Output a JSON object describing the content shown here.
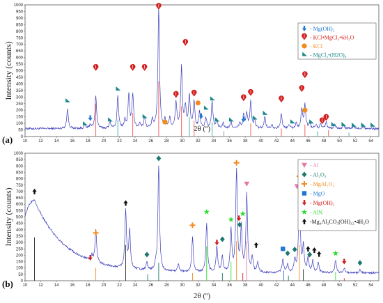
{
  "chart_data": [
    {
      "type": "line",
      "panel_label": "(a)",
      "xlabel": "2θ (º)",
      "ylabel": "Intensity (counts)",
      "xlim": [
        10,
        55
      ],
      "ylim": [
        0,
        1000
      ],
      "x_ticks": [
        10,
        12,
        14,
        16,
        18,
        20,
        22,
        24,
        26,
        28,
        30,
        32,
        34,
        36,
        38,
        40,
        42,
        44,
        46,
        48,
        50,
        52,
        54
      ],
      "y_ticks": [
        0,
        50,
        100,
        150,
        200,
        250,
        300,
        350,
        400,
        450,
        500,
        550,
        600,
        650,
        700,
        750,
        800,
        850,
        900,
        950,
        1000
      ],
      "line_color": "#3d3dbb",
      "baseline": 60,
      "peaks": [
        {
          "x": 15.4,
          "h": 150
        },
        {
          "x": 17.6,
          "h": 25
        },
        {
          "x": 18.3,
          "h": 30
        },
        {
          "x": 19.0,
          "h": 250
        },
        {
          "x": 20.8,
          "h": 50
        },
        {
          "x": 21.8,
          "h": 240
        },
        {
          "x": 22.7,
          "h": 60
        },
        {
          "x": 23.2,
          "h": 250
        },
        {
          "x": 23.7,
          "h": 260
        },
        {
          "x": 24.6,
          "h": 40
        },
        {
          "x": 25.2,
          "h": 80
        },
        {
          "x": 26.2,
          "h": 60
        },
        {
          "x": 27.0,
          "h": 900
        },
        {
          "x": 27.8,
          "h": 60
        },
        {
          "x": 28.4,
          "h": 80
        },
        {
          "x": 29.2,
          "h": 200
        },
        {
          "x": 29.9,
          "h": 460
        },
        {
          "x": 30.4,
          "h": 150
        },
        {
          "x": 30.9,
          "h": 250
        },
        {
          "x": 31.5,
          "h": 200
        },
        {
          "x": 32.2,
          "h": 120
        },
        {
          "x": 33.0,
          "h": 80
        },
        {
          "x": 33.8,
          "h": 200
        },
        {
          "x": 34.4,
          "h": 60
        },
        {
          "x": 35.2,
          "h": 40
        },
        {
          "x": 36.2,
          "h": 50
        },
        {
          "x": 37.3,
          "h": 40
        },
        {
          "x": 37.8,
          "h": 100
        },
        {
          "x": 38.2,
          "h": 110
        },
        {
          "x": 38.7,
          "h": 200
        },
        {
          "x": 39.2,
          "h": 60
        },
        {
          "x": 40.5,
          "h": 90
        },
        {
          "x": 41.4,
          "h": 30
        },
        {
          "x": 42.6,
          "h": 110
        },
        {
          "x": 43.6,
          "h": 30
        },
        {
          "x": 44.5,
          "h": 40
        },
        {
          "x": 45.2,
          "h": 140
        },
        {
          "x": 45.6,
          "h": 180
        },
        {
          "x": 46.2,
          "h": 40
        },
        {
          "x": 47.0,
          "h": 30
        },
        {
          "x": 47.6,
          "h": 30
        },
        {
          "x": 48.3,
          "h": 50
        },
        {
          "x": 49.4,
          "h": 30
        },
        {
          "x": 50.5,
          "h": 25
        },
        {
          "x": 51.8,
          "h": 20
        },
        {
          "x": 53.0,
          "h": 20
        }
      ],
      "legend": [
        {
          "label": "- Mg(OH)₂",
          "color": "#1f78d1",
          "symbol": "arrow-down"
        },
        {
          "label": "- KCl•MgCl₂•6H₂O",
          "color": "#d21f1f",
          "symbol": "drop"
        },
        {
          "label": "- KCl",
          "color": "#f28a1d",
          "symbol": "circle"
        },
        {
          "label": "- MgCl₂•(H2O)₆",
          "color": "#1a8a8a",
          "symbol": "flag"
        }
      ],
      "markers": [
        {
          "x": 15.4,
          "y": 270,
          "symbol": "flag",
          "color": "#1a8a8a"
        },
        {
          "x": 18.3,
          "y": 140,
          "symbol": "arrow-down",
          "color": "#1f78d1"
        },
        {
          "x": 17.6,
          "y": 95,
          "symbol": "flag",
          "color": "#1a8a8a"
        },
        {
          "x": 19.0,
          "y": 520,
          "symbol": "drop",
          "color": "#d21f1f"
        },
        {
          "x": 20.8,
          "y": 125,
          "symbol": "flag",
          "color": "#1a8a8a"
        },
        {
          "x": 21.8,
          "y": 360,
          "symbol": "flag",
          "color": "#1a8a8a"
        },
        {
          "x": 23.7,
          "y": 520,
          "symbol": "drop",
          "color": "#d21f1f"
        },
        {
          "x": 25.2,
          "y": 520,
          "symbol": "drop",
          "color": "#d21f1f"
        },
        {
          "x": 25.2,
          "y": 150,
          "symbol": "flag",
          "color": "#1a8a8a"
        },
        {
          "x": 27.0,
          "y": 985,
          "symbol": "drop",
          "color": "#d21f1f"
        },
        {
          "x": 27.8,
          "y": 110,
          "symbol": "circle",
          "color": "#f28a1d"
        },
        {
          "x": 29.2,
          "y": 315,
          "symbol": "drop",
          "color": "#d21f1f"
        },
        {
          "x": 30.4,
          "y": 710,
          "symbol": "drop",
          "color": "#d21f1f"
        },
        {
          "x": 31.5,
          "y": 325,
          "symbol": "drop",
          "color": "#d21f1f"
        },
        {
          "x": 32.0,
          "y": 255,
          "symbol": "circle",
          "color": "#f28a1d"
        },
        {
          "x": 32.4,
          "y": 155,
          "symbol": "arrow-down",
          "color": "#1f78d1"
        },
        {
          "x": 33.0,
          "y": 215,
          "symbol": "flag",
          "color": "#1a8a8a"
        },
        {
          "x": 33.8,
          "y": 285,
          "symbol": "flag",
          "color": "#1a8a8a"
        },
        {
          "x": 34.4,
          "y": 125,
          "symbol": "flag",
          "color": "#1a8a8a"
        },
        {
          "x": 36.2,
          "y": 125,
          "symbol": "flag",
          "color": "#1a8a8a"
        },
        {
          "x": 37.8,
          "y": 290,
          "symbol": "drop",
          "color": "#d21f1f"
        },
        {
          "x": 37.8,
          "y": 130,
          "symbol": "arrow-down",
          "color": "#1f78d1"
        },
        {
          "x": 38.7,
          "y": 330,
          "symbol": "drop",
          "color": "#d21f1f"
        },
        {
          "x": 39.2,
          "y": 140,
          "symbol": "flag",
          "color": "#1a8a8a"
        },
        {
          "x": 40.5,
          "y": 175,
          "symbol": "flag",
          "color": "#1a8a8a"
        },
        {
          "x": 42.6,
          "y": 280,
          "symbol": "drop",
          "color": "#d21f1f"
        },
        {
          "x": 44.0,
          "y": 110,
          "symbol": "flag",
          "color": "#1a8a8a"
        },
        {
          "x": 45.2,
          "y": 360,
          "symbol": "drop",
          "color": "#d21f1f"
        },
        {
          "x": 45.6,
          "y": 465,
          "symbol": "drop",
          "color": "#d21f1f"
        },
        {
          "x": 45.6,
          "y": 200,
          "symbol": "circle",
          "color": "#f28a1d"
        },
        {
          "x": 46.4,
          "y": 110,
          "symbol": "flag",
          "color": "#1a8a8a"
        },
        {
          "x": 47.8,
          "y": 115,
          "symbol": "drop",
          "color": "#d21f1f"
        },
        {
          "x": 48.3,
          "y": 140,
          "symbol": "drop",
          "color": "#d21f1f"
        },
        {
          "x": 49.2,
          "y": 90,
          "symbol": "flag",
          "color": "#1a8a8a"
        },
        {
          "x": 50.5,
          "y": 90,
          "symbol": "flag",
          "color": "#1a8a8a"
        },
        {
          "x": 51.8,
          "y": 85,
          "symbol": "flag",
          "color": "#1a8a8a"
        },
        {
          "x": 53.0,
          "y": 85,
          "symbol": "flag",
          "color": "#1a8a8a"
        },
        {
          "x": 54.2,
          "y": 85,
          "symbol": "flag",
          "color": "#1a8a8a"
        }
      ],
      "ref_lines": [
        {
          "x": 19.0,
          "h": 250,
          "color": "#e55"
        },
        {
          "x": 21.8,
          "h": 130,
          "color": "#3aa"
        },
        {
          "x": 23.7,
          "h": 180,
          "color": "#e55"
        },
        {
          "x": 27.0,
          "h": 420,
          "color": "#e55"
        },
        {
          "x": 29.9,
          "h": 230,
          "color": "#e55"
        },
        {
          "x": 30.9,
          "h": 150,
          "color": "#3aa"
        },
        {
          "x": 31.5,
          "h": 120,
          "color": "#e55"
        },
        {
          "x": 33.8,
          "h": 110,
          "color": "#3aa"
        },
        {
          "x": 35.3,
          "h": 40,
          "color": "#88a"
        },
        {
          "x": 38.7,
          "h": 100,
          "color": "#e55"
        },
        {
          "x": 42.6,
          "h": 60,
          "color": "#e55"
        },
        {
          "x": 45.6,
          "h": 90,
          "color": "#e55"
        },
        {
          "x": 47.2,
          "h": 40,
          "color": "#3aa"
        },
        {
          "x": 48.6,
          "h": 50,
          "color": "#e55"
        },
        {
          "x": 51.2,
          "h": 30,
          "color": "#3aa"
        }
      ]
    },
    {
      "type": "line",
      "panel_label": "(b)",
      "xlabel": "2θ (º)",
      "ylabel": "Intensity (counts)",
      "xlim": [
        10,
        55
      ],
      "ylim": [
        0,
        1000
      ],
      "x_ticks": [
        10,
        12,
        14,
        16,
        18,
        20,
        22,
        24,
        26,
        28,
        30,
        32,
        34,
        36,
        38,
        40,
        42,
        44,
        46,
        48,
        50,
        52,
        54
      ],
      "y_ticks": [
        0,
        50,
        100,
        150,
        200,
        250,
        300,
        350,
        400,
        450,
        500,
        550,
        600,
        650,
        700,
        750,
        800,
        850,
        900,
        950,
        1000
      ],
      "line_color": "#3d3dbb",
      "baseline": 60,
      "hump": {
        "center": 11.2,
        "height": 520,
        "width": 1.6,
        "decay": 6
      },
      "peaks": [
        {
          "x": 18.5,
          "h": 40
        },
        {
          "x": 19.0,
          "h": 260
        },
        {
          "x": 22.8,
          "h": 450
        },
        {
          "x": 23.3,
          "h": 300
        },
        {
          "x": 25.5,
          "h": 60
        },
        {
          "x": 26.6,
          "h": 40
        },
        {
          "x": 27.0,
          "h": 820
        },
        {
          "x": 29.5,
          "h": 60
        },
        {
          "x": 31.3,
          "h": 270
        },
        {
          "x": 33.1,
          "h": 380
        },
        {
          "x": 34.4,
          "h": 200
        },
        {
          "x": 35.1,
          "h": 120
        },
        {
          "x": 36.2,
          "h": 330
        },
        {
          "x": 36.9,
          "h": 800
        },
        {
          "x": 37.5,
          "h": 340
        },
        {
          "x": 38.2,
          "h": 610
        },
        {
          "x": 38.9,
          "h": 120
        },
        {
          "x": 39.6,
          "h": 80
        },
        {
          "x": 42.8,
          "h": 110
        },
        {
          "x": 43.4,
          "h": 60
        },
        {
          "x": 44.3,
          "h": 100
        },
        {
          "x": 44.9,
          "h": 680
        },
        {
          "x": 45.4,
          "h": 200
        },
        {
          "x": 46.0,
          "h": 120
        },
        {
          "x": 46.6,
          "h": 90
        },
        {
          "x": 47.3,
          "h": 80
        },
        {
          "x": 49.5,
          "h": 100
        },
        {
          "x": 50.6,
          "h": 40
        },
        {
          "x": 52.6,
          "h": 30
        }
      ],
      "legend": [
        {
          "label": "- Al",
          "color": "#e87aa8",
          "symbol": "triangle-down"
        },
        {
          "label": "- Al₂O₃",
          "color": "#1a7a6a",
          "symbol": "diamond"
        },
        {
          "label": "- MgAl₂O₄",
          "color": "#f28a1d",
          "symbol": "plus"
        },
        {
          "label": "- MgO",
          "color": "#1f78d1",
          "symbol": "square"
        },
        {
          "label": "- Mg(OH)₂",
          "color": "#d21f1f",
          "symbol": "arrow-down"
        },
        {
          "label": "- AlN",
          "color": "#2fdc2f",
          "symbol": "star"
        },
        {
          "label": "-Mg₄Al₂CO₃(OH)₁₂•4H₂O",
          "color": "#111111",
          "symbol": "arrow-up"
        }
      ],
      "markers": [
        {
          "x": 11.2,
          "y": 700,
          "symbol": "arrow-up",
          "color": "#111111"
        },
        {
          "x": 18.3,
          "y": 180,
          "symbol": "arrow-down",
          "color": "#d21f1f"
        },
        {
          "x": 19.0,
          "y": 375,
          "symbol": "plus",
          "color": "#f28a1d"
        },
        {
          "x": 22.8,
          "y": 610,
          "symbol": "arrow-up",
          "color": "#111111"
        },
        {
          "x": 25.5,
          "y": 205,
          "symbol": "diamond",
          "color": "#1a7a6a"
        },
        {
          "x": 27.0,
          "y": 960,
          "symbol": "diamond",
          "color": "#1a7a6a"
        },
        {
          "x": 31.3,
          "y": 435,
          "symbol": "plus",
          "color": "#f28a1d"
        },
        {
          "x": 33.1,
          "y": 540,
          "symbol": "star",
          "color": "#2fdc2f"
        },
        {
          "x": 34.4,
          "y": 300,
          "symbol": "arrow-down",
          "color": "#d21f1f"
        },
        {
          "x": 35.1,
          "y": 325,
          "symbol": "diamond",
          "color": "#1a7a6a"
        },
        {
          "x": 36.2,
          "y": 480,
          "symbol": "star",
          "color": "#2fdc2f"
        },
        {
          "x": 36.9,
          "y": 925,
          "symbol": "plus",
          "color": "#f28a1d"
        },
        {
          "x": 37.2,
          "y": 490,
          "symbol": "arrow-down",
          "color": "#d21f1f"
        },
        {
          "x": 37.3,
          "y": 440,
          "symbol": "diamond",
          "color": "#1a7a6a"
        },
        {
          "x": 37.7,
          "y": 525,
          "symbol": "star",
          "color": "#2fdc2f"
        },
        {
          "x": 38.2,
          "y": 760,
          "symbol": "triangle-down",
          "color": "#e87aa8"
        },
        {
          "x": 39.4,
          "y": 280,
          "symbol": "arrow-up",
          "color": "#111111"
        },
        {
          "x": 42.8,
          "y": 250,
          "symbol": "square",
          "color": "#1f78d1"
        },
        {
          "x": 43.4,
          "y": 215,
          "symbol": "diamond",
          "color": "#1a7a6a"
        },
        {
          "x": 44.3,
          "y": 245,
          "symbol": "diamond",
          "color": "#1a7a6a"
        },
        {
          "x": 44.6,
          "y": 740,
          "symbol": "triangle-down",
          "color": "#e87aa8"
        },
        {
          "x": 44.9,
          "y": 820,
          "symbol": "plus",
          "color": "#f28a1d"
        },
        {
          "x": 46.0,
          "y": 250,
          "symbol": "arrow-up",
          "color": "#111111"
        },
        {
          "x": 46.2,
          "y": 205,
          "symbol": "diamond",
          "color": "#1a7a6a"
        },
        {
          "x": 46.8,
          "y": 240,
          "symbol": "arrow-up",
          "color": "#111111"
        },
        {
          "x": 47.4,
          "y": 210,
          "symbol": "arrow-up",
          "color": "#111111"
        },
        {
          "x": 49.5,
          "y": 215,
          "symbol": "star",
          "color": "#2fdc2f"
        },
        {
          "x": 50.6,
          "y": 150,
          "symbol": "arrow-down",
          "color": "#d21f1f"
        },
        {
          "x": 52.6,
          "y": 140,
          "symbol": "diamond",
          "color": "#1a7a6a"
        }
      ],
      "ref_lines": [
        {
          "x": 11.2,
          "h": 340,
          "color": "#222"
        },
        {
          "x": 19.0,
          "h": 100,
          "color": "#f28a1d"
        },
        {
          "x": 22.8,
          "h": 280,
          "color": "#222"
        },
        {
          "x": 25.6,
          "h": 50,
          "color": "#1a7a6a"
        },
        {
          "x": 27.0,
          "h": 140,
          "color": "#1a7a6a"
        },
        {
          "x": 31.3,
          "h": 60,
          "color": "#f28a1d"
        },
        {
          "x": 33.1,
          "h": 270,
          "color": "#2fdc2f"
        },
        {
          "x": 35.1,
          "h": 60,
          "color": "#1a7a6a"
        },
        {
          "x": 36.2,
          "h": 150,
          "color": "#2fdc2f"
        },
        {
          "x": 36.9,
          "h": 310,
          "color": "#f28a1d"
        },
        {
          "x": 37.7,
          "h": 60,
          "color": "#d21f1f"
        },
        {
          "x": 38.2,
          "h": 310,
          "color": "#e87aa8"
        },
        {
          "x": 42.9,
          "h": 80,
          "color": "#1f78d1"
        },
        {
          "x": 43.5,
          "h": 40,
          "color": "#1a7a6a"
        },
        {
          "x": 44.9,
          "h": 280,
          "color": "#f28a1d"
        },
        {
          "x": 45.4,
          "h": 90,
          "color": "#222"
        },
        {
          "x": 49.5,
          "h": 70,
          "color": "#2fdc2f"
        },
        {
          "x": 50.6,
          "h": 20,
          "color": "#d21f1f"
        }
      ]
    }
  ]
}
